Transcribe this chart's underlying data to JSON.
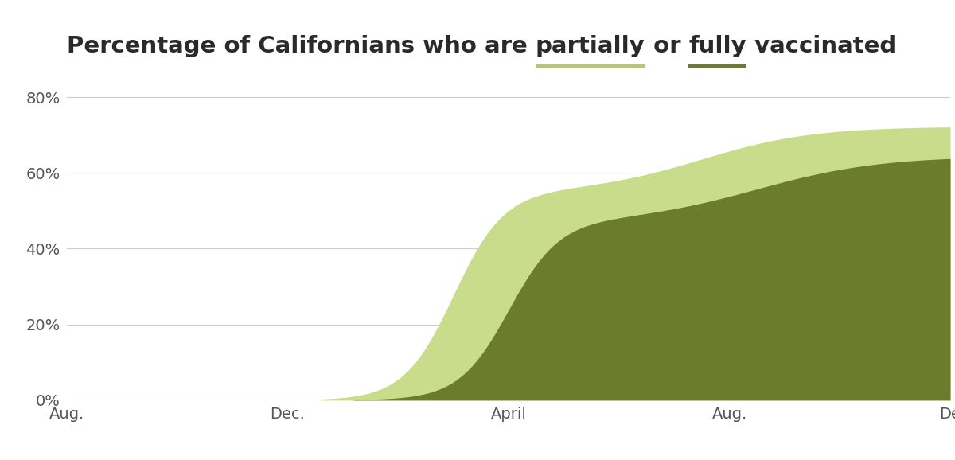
{
  "background_color": "#ffffff",
  "partial_color": "#c8dc8c",
  "full_color": "#6b7c2d",
  "yticks": [
    0,
    20,
    40,
    60,
    80
  ],
  "ytick_labels": [
    "0%",
    "20%",
    "40%",
    "60%",
    "80%"
  ],
  "xtick_positions": [
    0,
    4,
    8,
    12,
    16
  ],
  "xtick_labels": [
    "Aug.",
    "Dec.",
    "April",
    "Aug.",
    "De"
  ],
  "ylim": [
    0,
    85
  ],
  "xlim": [
    0,
    16
  ],
  "title_fontsize": 21,
  "tick_fontsize": 14,
  "title_color": "#2a2a2a",
  "tick_color": "#555555",
  "grid_color": "#cccccc",
  "partial_underline_color": "#b5c96a",
  "full_underline_color": "#6b7c2d",
  "title_prefix": "Percentage of Californians who are ",
  "title_partial": "partially",
  "title_mid": " or ",
  "title_full": "fully",
  "title_suffix": " vaccinated"
}
